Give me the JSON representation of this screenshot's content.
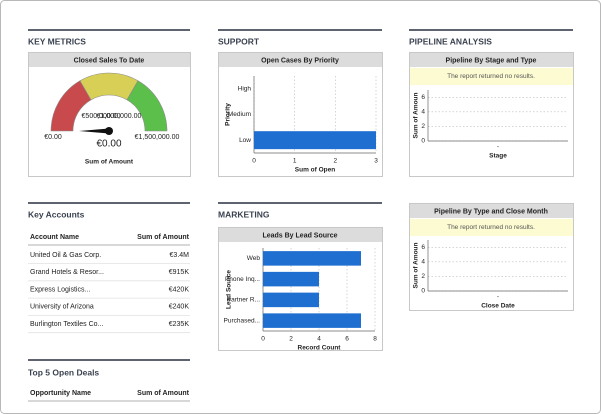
{
  "key_metrics": {
    "heading": "KEY METRICS",
    "title": "Closed Sales To Date",
    "type": "gauge",
    "range": [
      0,
      1500000
    ],
    "ticks": [
      {
        "value": 0,
        "label": "€0.00"
      },
      {
        "value": 500000,
        "label": "€500,000.00"
      },
      {
        "value": 1000000,
        "label": "€1,000,000.00"
      },
      {
        "value": 1500000,
        "label": "€1,500,000.00"
      }
    ],
    "band_colors": [
      "#c94a4c",
      "#d8cf56",
      "#5cbf4c"
    ],
    "value": 0,
    "value_label": "€0.00",
    "caption": "Sum of Amount"
  },
  "support": {
    "heading": "SUPPORT",
    "title": "Open Cases By Priority",
    "type": "hbar",
    "categories": [
      "High",
      "Medium",
      "Low"
    ],
    "values": [
      0,
      0,
      3
    ],
    "color": "#1f6fd1",
    "xlim": [
      0,
      3
    ],
    "xticks": [
      0,
      1,
      2,
      3
    ],
    "xlabel": "Sum of Open",
    "ylabel": "Priority",
    "grid": true
  },
  "pipeline_stage": {
    "heading": "PIPELINE ANALYSIS",
    "title": "Pipeline By Stage and Type",
    "type": "empty",
    "message": "The report returned no results.",
    "categories": [
      "-"
    ],
    "ylim": [
      0,
      7
    ],
    "yticks": [
      0,
      2,
      4,
      6
    ],
    "ylabel": "Sum of Amoun",
    "xlabel": "Stage",
    "grid": true
  },
  "pipeline_month": {
    "title": "Pipeline By Type and Close Month",
    "type": "empty",
    "message": "The report returned no results.",
    "categories": [
      "-"
    ],
    "ylim": [
      0,
      7
    ],
    "yticks": [
      0,
      2,
      4,
      6
    ],
    "ylabel": "Sum of Amoun",
    "xlabel": "Close Date",
    "grid": true
  },
  "key_accounts": {
    "heading": "Key Accounts",
    "columns": [
      "Account Name",
      "Sum of Amount"
    ],
    "rows": [
      [
        "United Oil & Gas Corp.",
        "€3.4M"
      ],
      [
        "Grand Hotels & Resor...",
        "€915K"
      ],
      [
        "Express Logistics...",
        "€420K"
      ],
      [
        "University of Arizona",
        "€240K"
      ],
      [
        "Burlington Textiles Co...",
        "€235K"
      ]
    ]
  },
  "marketing": {
    "heading": "MARKETING",
    "title": "Leads By Lead Source",
    "type": "hbar",
    "categories": [
      "Web",
      "Phone Inq...",
      "Partner R...",
      "Purchased..."
    ],
    "values": [
      7,
      4,
      4,
      7
    ],
    "color": "#1f6fd1",
    "xlim": [
      0,
      8
    ],
    "xticks": [
      0,
      2,
      4,
      6,
      8
    ],
    "xlabel": "Record Count",
    "ylabel": "Lead Source",
    "grid": true
  },
  "top_deals": {
    "heading": "Top 5 Open Deals",
    "columns": [
      "Opportunity Name",
      "Sum of Amount"
    ]
  }
}
